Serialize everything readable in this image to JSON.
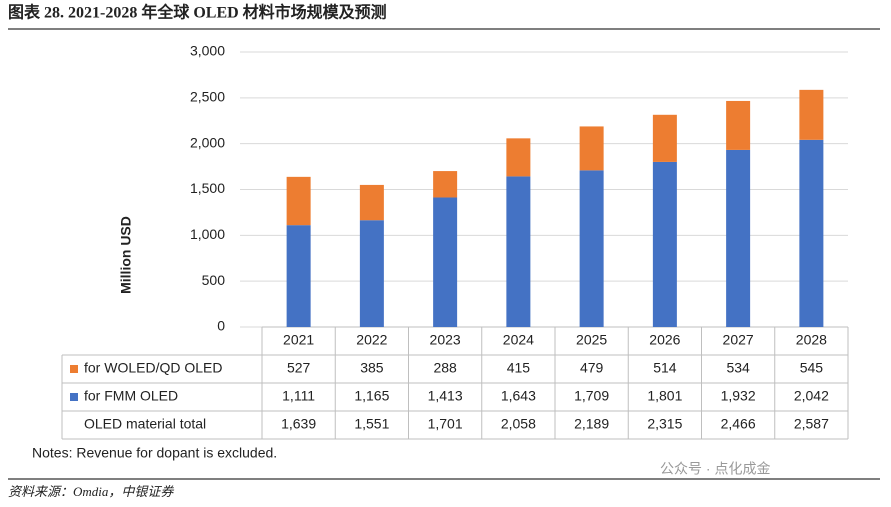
{
  "chart_data": {
    "type": "stacked_bar",
    "title": "图表 28. 2021-2028 年全球 OLED 材料市场规模及预测",
    "y_label": "Million USD",
    "categories": [
      "2021",
      "2022",
      "2023",
      "2024",
      "2025",
      "2026",
      "2027",
      "2028"
    ],
    "series": [
      {
        "name": "for WOLED/QD OLED",
        "color": "#ed7d31",
        "values": [
          527,
          385,
          288,
          415,
          479,
          514,
          534,
          545
        ]
      },
      {
        "name": "for FMM OLED",
        "color": "#4472c4",
        "values": [
          1111,
          1165,
          1413,
          1643,
          1709,
          1801,
          1932,
          2042
        ],
        "value_labels": [
          "1,111",
          "1,165",
          "1,413",
          "1,643",
          "1,709",
          "1,801",
          "1,932",
          "2,042"
        ]
      }
    ],
    "total_label": "OLED material total",
    "totals": [
      1639,
      1551,
      1701,
      2058,
      2189,
      2315,
      2466,
      2587
    ],
    "total_labels": [
      "1,639",
      "1,551",
      "1,701",
      "2,058",
      "2,189",
      "2,315",
      "2,466",
      "2,587"
    ],
    "ylim": [
      0,
      3000
    ],
    "yticks": [
      0,
      500,
      {
        "value": 1000,
        "label": "1,000"
      },
      {
        "value": 1500,
        "label": "1,500"
      },
      {
        "value": 2000,
        "label": "2,000"
      },
      {
        "value": 2500,
        "label": "2,500"
      },
      {
        "value": 3000,
        "label": "3,000"
      }
    ],
    "grid": true,
    "note": "Notes: Revenue for dopant is excluded.",
    "source": "资料来源：Omdia，中银证券",
    "watermark": "公众号 · 点化成金"
  }
}
